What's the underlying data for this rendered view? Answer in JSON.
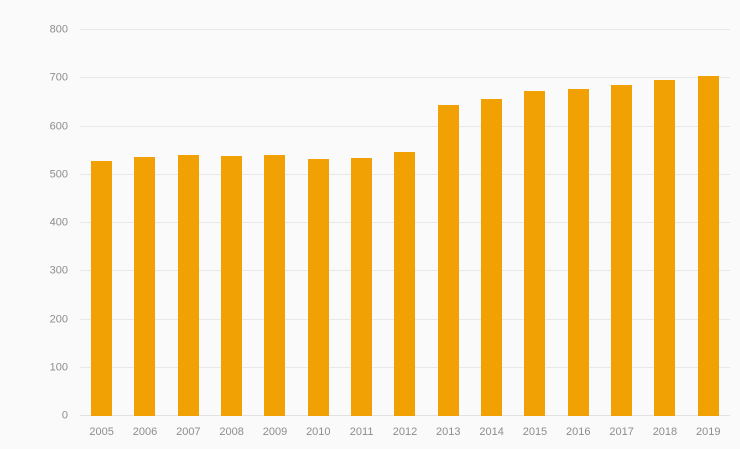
{
  "chart": {
    "background": "#fafafa",
    "bar_color": "#f2a104",
    "grid_color": "#e9e9e9",
    "label_color": "#8d8d8d"
  },
  "chart_data": {
    "type": "bar",
    "title": "",
    "xlabel": "",
    "ylabel": "",
    "categories": [
      "2005",
      "2006",
      "2007",
      "2008",
      "2009",
      "2010",
      "2011",
      "2012",
      "2013",
      "2014",
      "2015",
      "2016",
      "2017",
      "2018",
      "2019"
    ],
    "values": [
      528,
      536,
      540,
      538,
      540,
      533,
      535,
      547,
      645,
      657,
      673,
      678,
      686,
      696,
      705
    ],
    "ylim": [
      0,
      800
    ],
    "ytick_step": 100,
    "ytick_labels": [
      "0",
      "100",
      "200",
      "300",
      "400",
      "500",
      "600",
      "700",
      "800"
    ],
    "grid": true,
    "legend_position": "none"
  }
}
